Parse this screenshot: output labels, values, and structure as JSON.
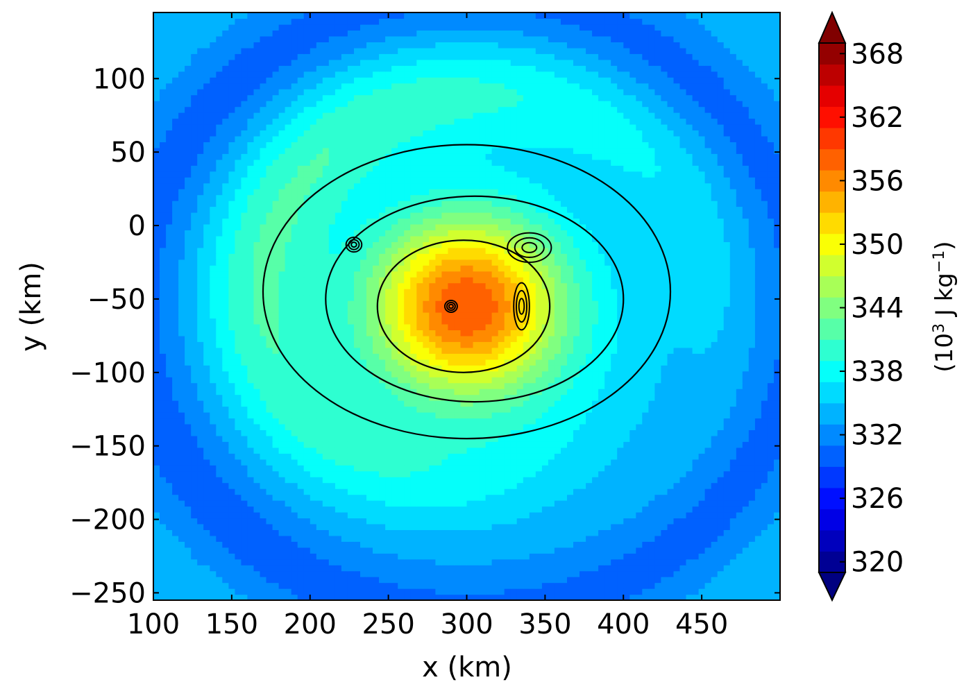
{
  "chart_data": {
    "type": "heatmap",
    "title": "",
    "xlabel": "x (km)",
    "ylabel": "y (km)",
    "xlim": [
      100,
      500
    ],
    "ylim": [
      -255,
      145
    ],
    "x_ticks": [
      100,
      150,
      200,
      250,
      300,
      350,
      400,
      450
    ],
    "y_ticks": [
      100,
      50,
      0,
      -50,
      -100,
      -150,
      -200,
      -250
    ],
    "colorbar": {
      "label_parts": [
        "(10",
        "3",
        " J kg",
        "−1",
        ")"
      ],
      "min": 320,
      "max": 370,
      "step": 2,
      "extend": "both",
      "ticks": [
        320,
        326,
        332,
        338,
        344,
        350,
        356,
        362,
        368
      ],
      "colormap": "jet"
    },
    "field": {
      "description_center": [
        300,
        -55
      ],
      "core_value": 360,
      "background_value": 334,
      "eye_contours_present": true
    },
    "grid": false,
    "legend": "none"
  }
}
